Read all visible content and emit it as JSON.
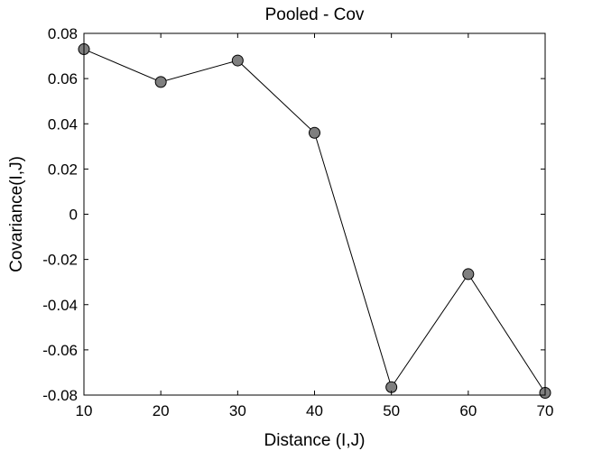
{
  "chart_data": {
    "type": "line",
    "title": "Pooled - Cov",
    "xlabel": "Distance (I,J)",
    "ylabel": "Covariance(I,J)",
    "xlim": [
      10,
      70
    ],
    "ylim": [
      -0.08,
      0.08
    ],
    "xticks": [
      10,
      20,
      30,
      40,
      50,
      60,
      70
    ],
    "xtick_labels": [
      "10",
      "20",
      "30",
      "40",
      "50",
      "60",
      "70"
    ],
    "yticks": [
      0.08,
      0.06,
      0.04,
      0.02,
      0,
      -0.02,
      -0.04,
      -0.06,
      -0.08
    ],
    "ytick_labels": [
      "0.08",
      "0.06",
      "0.04",
      "0.02",
      "0",
      "-0.02",
      "-0.04",
      "-0.06",
      "-0.08"
    ],
    "grid": false,
    "series": [
      {
        "x": [
          10,
          20,
          30,
          40,
          50,
          60,
          70
        ],
        "y": [
          0.073,
          0.0585,
          0.068,
          0.036,
          -0.0765,
          -0.0265,
          -0.079
        ],
        "line_color": "#000000",
        "marker_color": "#7f7f7f",
        "marker_edge_color": "#000000"
      }
    ]
  }
}
